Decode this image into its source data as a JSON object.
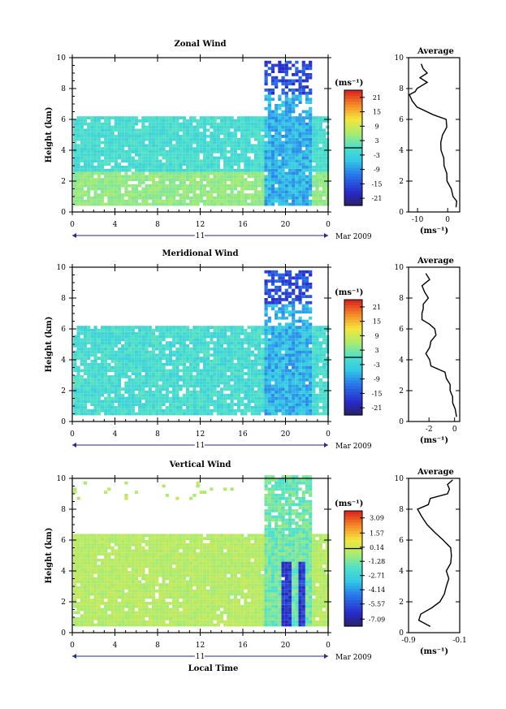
{
  "figure": {
    "x_axis_label": "Local Time",
    "date_label": "Mar 2009",
    "day_label": "11"
  },
  "chart_data": [
    {
      "type": "heatmap",
      "title": "Zonal Wind",
      "xlabel": "",
      "ylabel": "Height (km)",
      "x_ticks": [
        "0",
        "4",
        "8",
        "12",
        "16",
        "20",
        "0"
      ],
      "xlim_hours": [
        0,
        24
      ],
      "ylim": [
        0,
        10
      ],
      "y_ticks": [
        "0",
        "2",
        "4",
        "6",
        "8",
        "10"
      ],
      "colorbar": {
        "unit": "(ms⁻¹)",
        "ticks": [
          "21",
          "15",
          "9",
          "3",
          "-3",
          "-9",
          "-15",
          "-21"
        ],
        "range": [
          -24,
          24
        ]
      },
      "profile": {
        "title": "Average",
        "xlabel": "(ms⁻¹)",
        "x_ticks": [
          "-10",
          "0"
        ],
        "xlim": [
          -13,
          4
        ],
        "heights": [
          0.3,
          0.7,
          1.0,
          1.5,
          2.0,
          2.5,
          3.0,
          3.5,
          4.0,
          4.5,
          5.0,
          5.5,
          6.0,
          6.3,
          6.8,
          7.2,
          7.6,
          7.8,
          8.0,
          8.4,
          8.7,
          9.0,
          9.3,
          9.6
        ],
        "values": [
          3.0,
          2.8,
          2.0,
          1.0,
          0.0,
          -0.5,
          -1.0,
          -1.5,
          -2.0,
          -2.5,
          -1.5,
          -0.5,
          -0.3,
          -5.0,
          -10.0,
          -12.0,
          -12.5,
          -11.0,
          -10.0,
          -7.0,
          -9.0,
          -7.0,
          -8.0,
          -9.0
        ]
      }
    },
    {
      "type": "heatmap",
      "title": "Meridional Wind",
      "xlabel": "",
      "ylabel": "Height (km)",
      "x_ticks": [
        "0",
        "4",
        "8",
        "12",
        "16",
        "20",
        "0"
      ],
      "xlim_hours": [
        0,
        24
      ],
      "ylim": [
        0,
        10
      ],
      "y_ticks": [
        "0",
        "2",
        "4",
        "6",
        "8",
        "10"
      ],
      "colorbar": {
        "unit": "(ms⁻¹)",
        "ticks": [
          "21",
          "15",
          "9",
          "3",
          "-3",
          "-9",
          "-15",
          "-21"
        ],
        "range": [
          -24,
          24
        ]
      },
      "profile": {
        "title": "Average",
        "xlabel": "(ms⁻¹)",
        "x_ticks": [
          "-2",
          "0"
        ],
        "xlim": [
          -3.6,
          0.4
        ],
        "heights": [
          0.3,
          0.8,
          1.2,
          1.6,
          2.0,
          2.4,
          2.8,
          3.2,
          3.6,
          4.0,
          4.4,
          4.8,
          5.2,
          5.6,
          6.0,
          6.3,
          6.6,
          7.0,
          7.3,
          7.6,
          8.0,
          8.4,
          8.8,
          9.2,
          9.6
        ],
        "values": [
          0.2,
          0.0,
          -0.1,
          -0.2,
          -0.3,
          -0.4,
          -0.6,
          -0.8,
          -1.8,
          -2.0,
          -2.2,
          -2.0,
          -1.8,
          -1.5,
          -1.5,
          -2.0,
          -2.5,
          -2.6,
          -2.4,
          -2.5,
          -2.0,
          -2.4,
          -2.5,
          -2.0,
          -2.2
        ]
      }
    },
    {
      "type": "heatmap",
      "title": "Vertical Wind",
      "xlabel": "Local Time",
      "ylabel": "Height (km)",
      "x_ticks": [
        "0",
        "4",
        "8",
        "12",
        "16",
        "20",
        "0"
      ],
      "xlim_hours": [
        0,
        24
      ],
      "ylim": [
        0,
        10
      ],
      "y_ticks": [
        "0",
        "2",
        "4",
        "6",
        "8",
        "10"
      ],
      "colorbar": {
        "unit": "(ms⁻¹)",
        "ticks": [
          "3.09",
          "1.57",
          "0.14",
          "-1.28",
          "-2.71",
          "-4.14",
          "-5.57",
          "-7.09"
        ],
        "range": [
          -7.8,
          3.8
        ]
      },
      "profile": {
        "title": "Average",
        "xlabel": "(ms⁻¹)",
        "x_ticks": [
          "-0.9",
          "-0.1"
        ],
        "xlim": [
          -0.9,
          -0.1
        ],
        "heights": [
          0.4,
          0.8,
          1.2,
          1.6,
          2.0,
          2.5,
          3.0,
          3.5,
          4.0,
          4.5,
          5.0,
          5.5,
          6.0,
          6.5,
          7.0,
          7.5,
          8.0,
          8.3,
          8.7,
          9.0,
          9.3,
          9.6,
          9.9
        ],
        "values": [
          -0.55,
          -0.75,
          -0.7,
          -0.55,
          -0.4,
          -0.35,
          -0.3,
          -0.28,
          -0.3,
          -0.25,
          -0.22,
          -0.25,
          -0.35,
          -0.5,
          -0.6,
          -0.7,
          -0.75,
          -0.6,
          -0.55,
          -0.3,
          -0.25,
          -0.3,
          -0.2
        ]
      }
    }
  ]
}
